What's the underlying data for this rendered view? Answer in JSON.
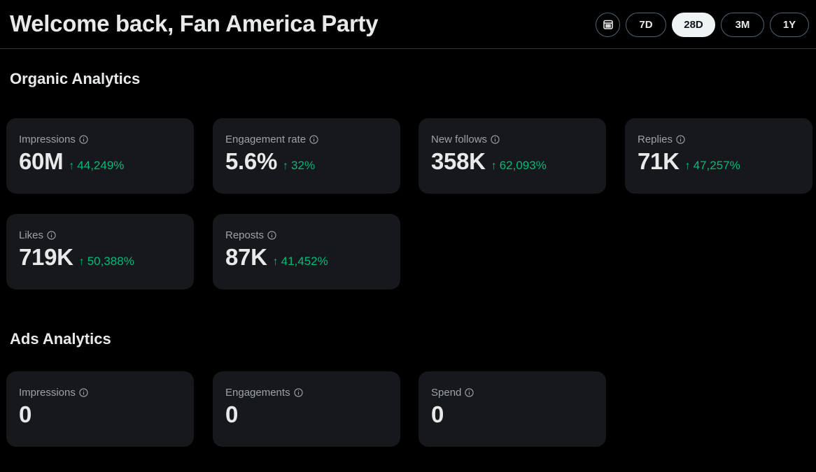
{
  "header": {
    "title": "Welcome back, Fan America Party",
    "calendar_icon": "calendar-icon",
    "ranges": [
      {
        "label": "7D",
        "active": false
      },
      {
        "label": "28D",
        "active": true
      },
      {
        "label": "3M",
        "active": false
      },
      {
        "label": "1Y",
        "active": false
      }
    ]
  },
  "organic": {
    "title": "Organic Analytics",
    "cards": [
      {
        "label": "Impressions",
        "value": "60M",
        "change": "44,249%"
      },
      {
        "label": "Engagement rate",
        "value": "5.6%",
        "change": "32%"
      },
      {
        "label": "New follows",
        "value": "358K",
        "change": "62,093%"
      },
      {
        "label": "Replies",
        "value": "71K",
        "change": "47,257%"
      },
      {
        "label": "Likes",
        "value": "719K",
        "change": "50,388%"
      },
      {
        "label": "Reposts",
        "value": "87K",
        "change": "41,452%"
      }
    ]
  },
  "ads": {
    "title": "Ads Analytics",
    "cards": [
      {
        "label": "Impressions",
        "value": "0"
      },
      {
        "label": "Engagements",
        "value": "0"
      },
      {
        "label": "Spend",
        "value": "0"
      }
    ]
  },
  "colors": {
    "background": "#000000",
    "card": "#16181c",
    "positive": "#00ba7c",
    "muted_text": "#9ca3a8"
  },
  "icons": {
    "info": "info-icon",
    "trend_up": "arrow-up-icon"
  }
}
